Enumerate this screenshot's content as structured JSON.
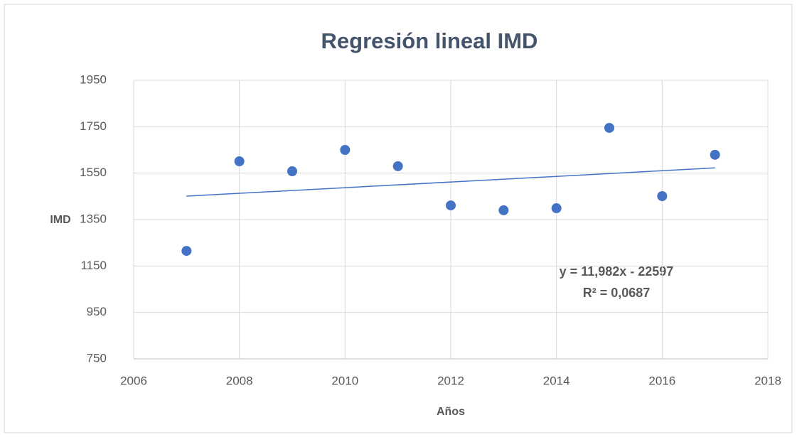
{
  "chart_data": {
    "type": "scatter",
    "title": "Regresión lineal IMD",
    "x_label": "Años",
    "y_label": "IMD",
    "x": [
      2007,
      2008,
      2009,
      2010,
      2011,
      2012,
      2013,
      2014,
      2015,
      2016,
      2017
    ],
    "series": [
      {
        "name": "IMD",
        "color": "#4472c4",
        "values": [
          1215,
          1601,
          1558,
          1650,
          1580,
          1411,
          1390,
          1399,
          1745,
          1451,
          1629
        ]
      }
    ],
    "trendline": true,
    "annotation": [
      "y = 11,982x - 22597",
      "R² = 0,0687"
    ],
    "xlim": [
      2006,
      2018
    ],
    "xticks": [
      2006,
      2008,
      2010,
      2012,
      2014,
      2016,
      2018
    ],
    "ylim": [
      750,
      1950
    ],
    "yticks": [
      750,
      950,
      1150,
      1350,
      1550,
      1750,
      1950
    ],
    "grid": true
  }
}
